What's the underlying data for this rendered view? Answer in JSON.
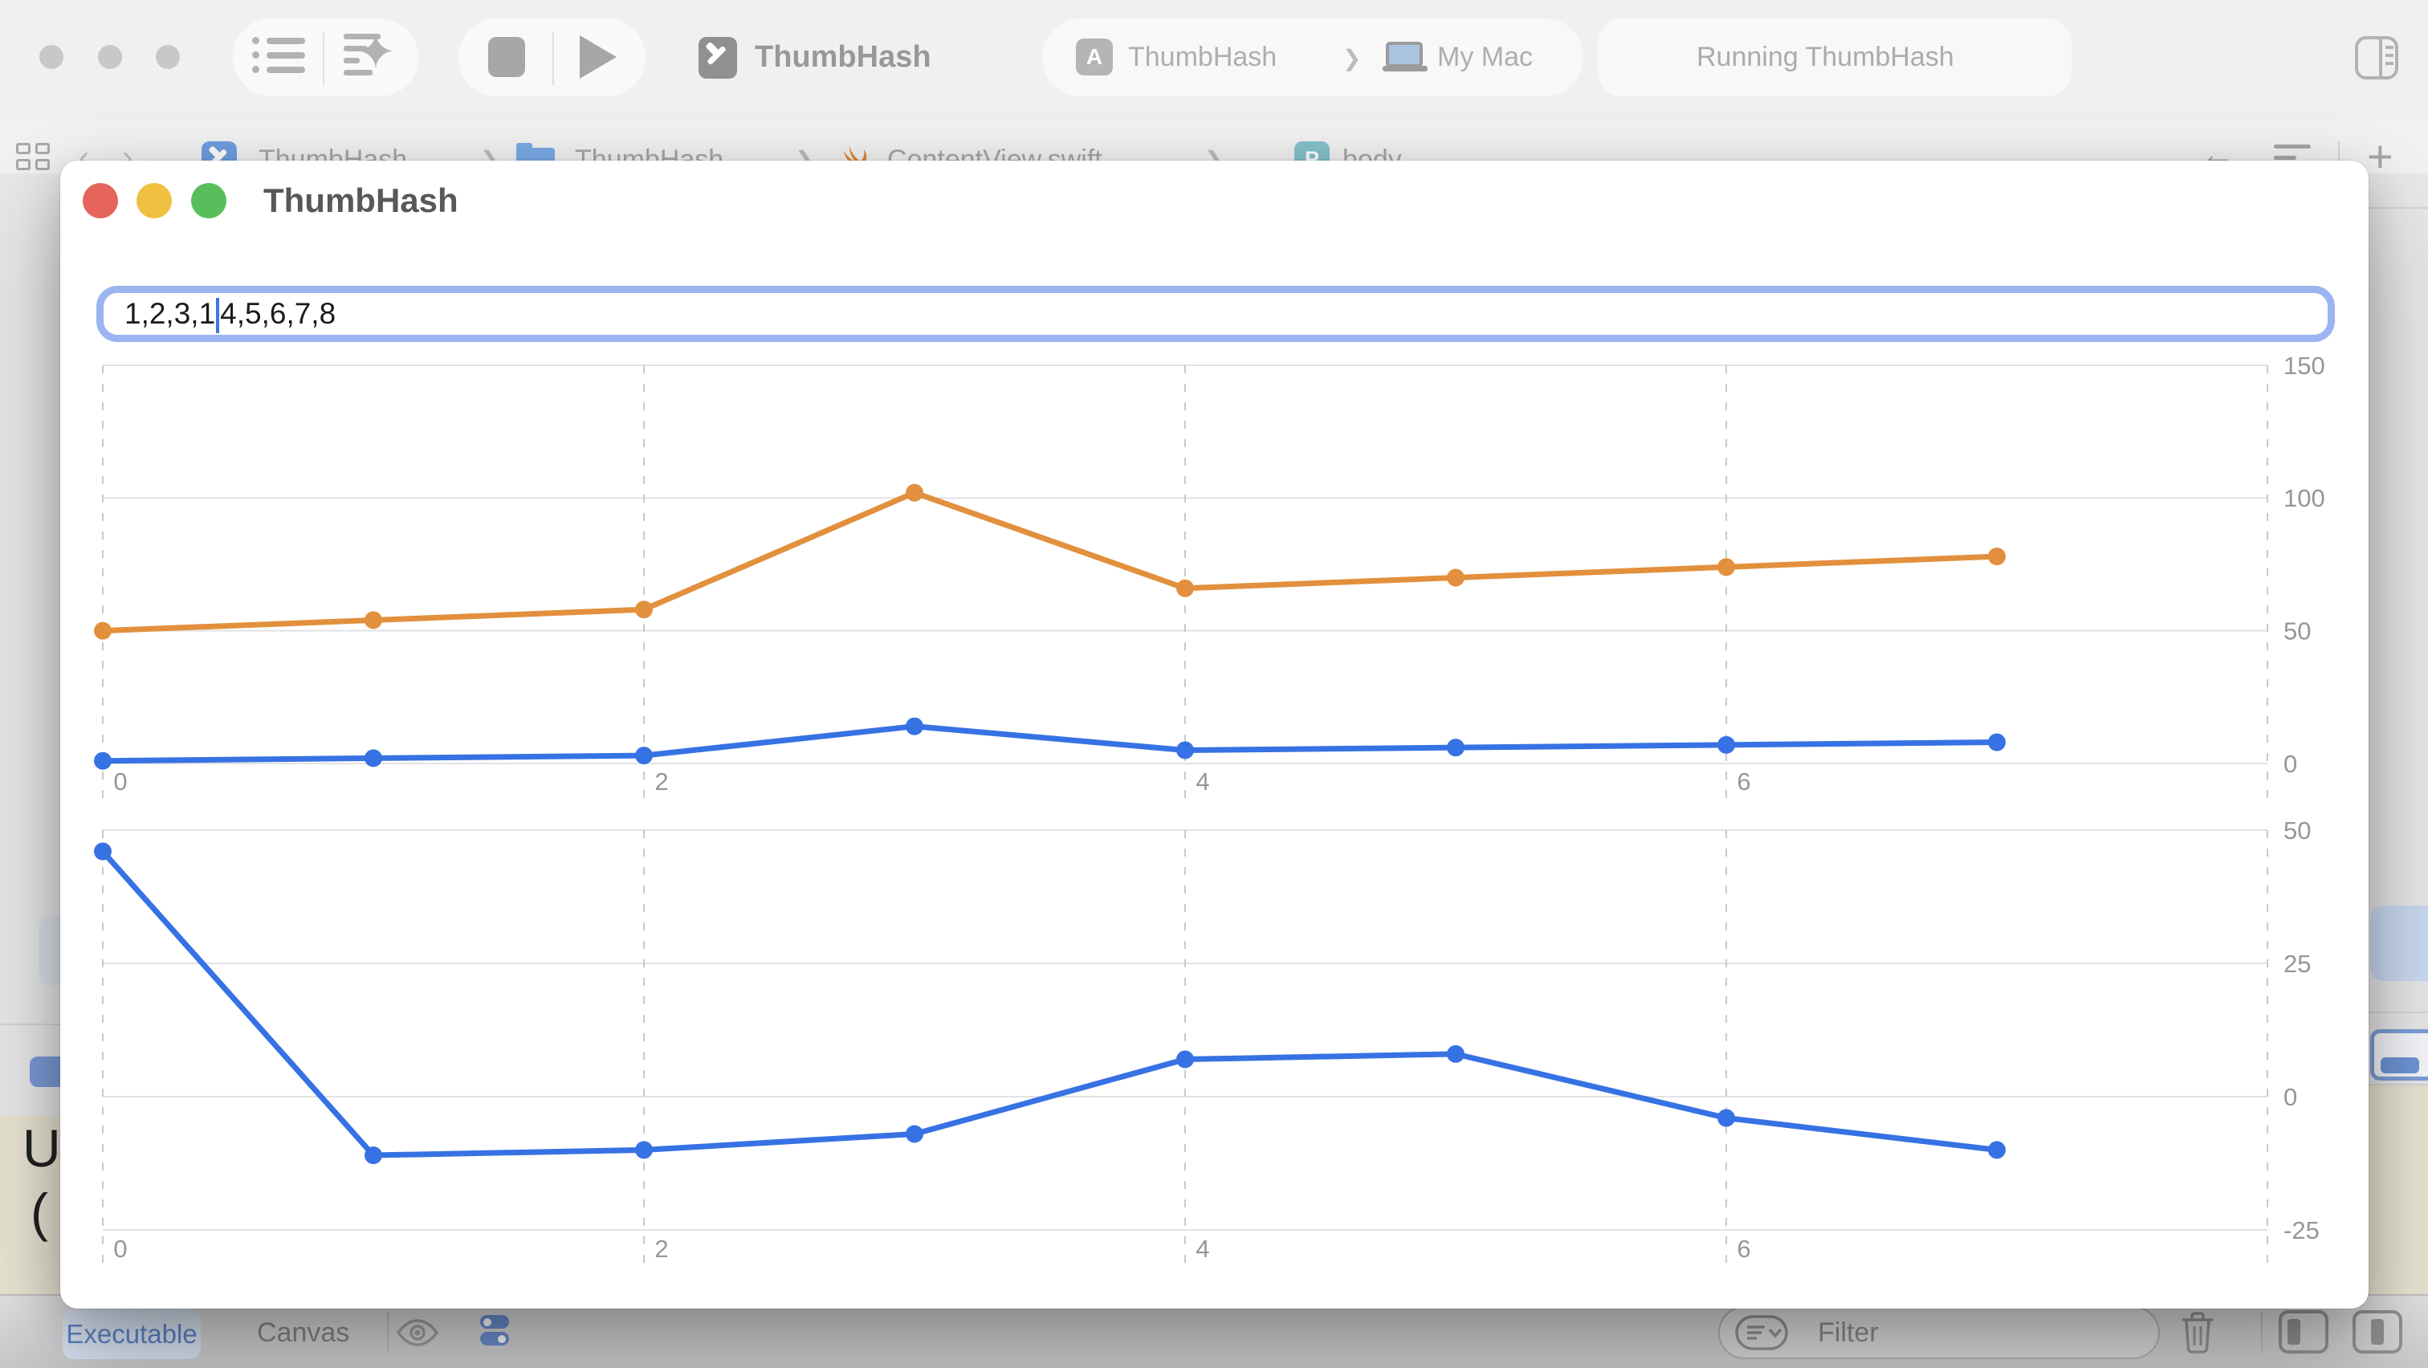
{
  "toolbar": {
    "window_title": "ThumbHash",
    "app_icon_letter": "A",
    "scheme_name": "ThumbHash",
    "scheme_separator": "❯",
    "scheme_destination": "My Mac",
    "status_text": "Running ThumbHash"
  },
  "navbar": {
    "back_chevron": "‹",
    "forward_chevron": "›",
    "separator": "❯",
    "p_icon_letter": "P",
    "breadcrumb": [
      {
        "label": "ThumbHash"
      },
      {
        "label": "ThumbHash"
      },
      {
        "label": "ContentView.swift"
      },
      {
        "label": "body"
      }
    ],
    "back_arrow": "←",
    "plus": "+"
  },
  "window": {
    "title": "ThumbHash",
    "input_before_cursor": "1,2,3,1",
    "input_after_cursor": "4,5,6,7,8"
  },
  "bottom_bar": {
    "executable_label": "Executable",
    "canvas_label": "Canvas",
    "filter_placeholder": "Filter"
  },
  "background_editor": {
    "fragment_line1": "U",
    "fragment_line2": "("
  },
  "colors": {
    "series_blue": "#3672E3",
    "series_orange": "#E2903D",
    "traffic_red": "#E5645C",
    "traffic_yellow": "#F0C040",
    "traffic_green": "#58BE5B",
    "focus_ring": "#9AB5EF"
  },
  "chart_data": [
    {
      "type": "line",
      "title": "",
      "x": [
        0,
        1,
        2,
        3,
        4,
        5,
        6,
        7
      ],
      "xticks": [
        0,
        2,
        4,
        6
      ],
      "ylim": [
        0,
        150
      ],
      "yticks": [
        150,
        100,
        50,
        0
      ],
      "grid": true,
      "legend_position": "none",
      "series": [
        {
          "name": "orange",
          "color": "#E2903D",
          "values": [
            50,
            54,
            58,
            102,
            66,
            70,
            74,
            78
          ]
        },
        {
          "name": "blue",
          "color": "#3672E3",
          "values": [
            1,
            2,
            3,
            14,
            5,
            6,
            7,
            8
          ]
        }
      ]
    },
    {
      "type": "line",
      "title": "",
      "x": [
        0,
        1,
        2,
        3,
        4,
        5,
        6,
        7
      ],
      "xticks": [
        0,
        2,
        4,
        6
      ],
      "ylim": [
        -25,
        50
      ],
      "yticks": [
        50,
        25,
        0,
        -25
      ],
      "grid": true,
      "legend_position": "none",
      "series": [
        {
          "name": "blue",
          "color": "#3672E3",
          "values": [
            46,
            -11,
            -10,
            -7,
            7,
            8,
            -4,
            -10
          ]
        }
      ]
    }
  ]
}
